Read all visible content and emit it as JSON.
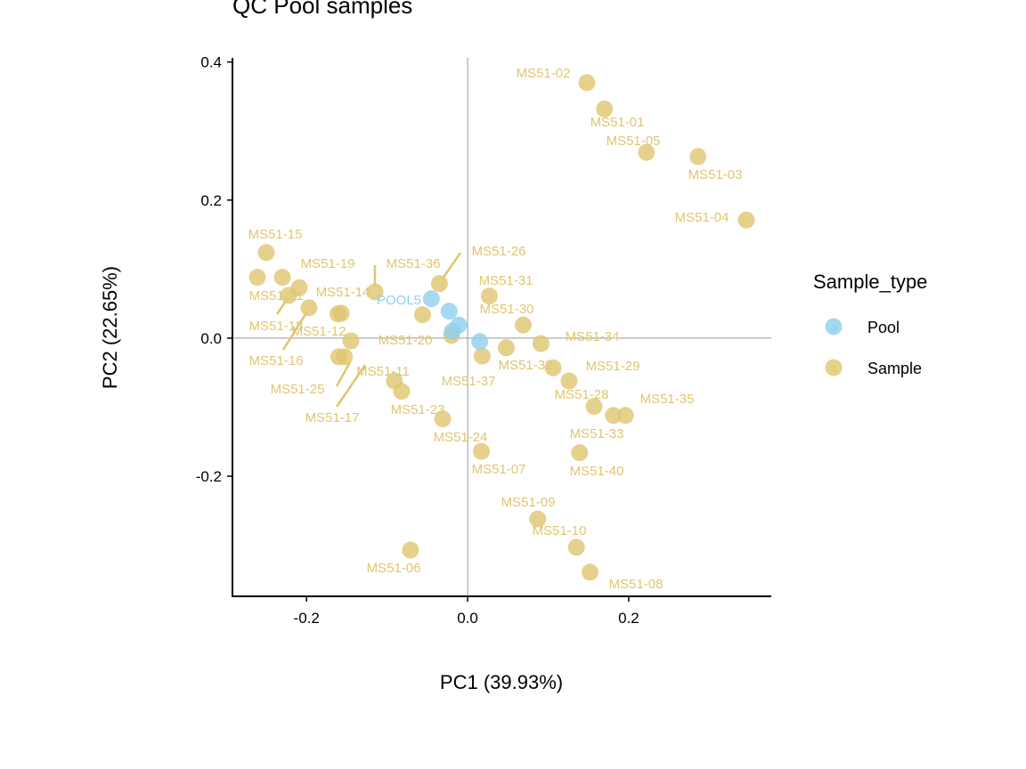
{
  "chart_data": {
    "type": "scatter",
    "title": "QC Pool samples",
    "xlabel": "PC1 (39.93%)",
    "ylabel": "PC2 (22.65%)",
    "xlim": [
      -0.292,
      0.377
    ],
    "ylim": [
      -0.374,
      0.406
    ],
    "xticks": [
      -0.2,
      0.0,
      0.2
    ],
    "xtick_labels": [
      "-0.2",
      "0.0",
      "0.2"
    ],
    "yticks": [
      -0.2,
      0.0,
      0.2,
      0.4
    ],
    "ytick_labels": [
      "-0.2",
      "0.0",
      "0.2",
      "0.4"
    ],
    "grid": false,
    "reference_lines": {
      "x": 0,
      "y": 0
    },
    "legend": {
      "title": "Sample_type",
      "position": "right",
      "entries": [
        "Pool",
        "Sample"
      ]
    },
    "colors": {
      "Pool": "#8ECFEE",
      "Sample": "#DFC66F"
    },
    "series": [
      {
        "name": "Pool",
        "points": [
          {
            "x": -0.045,
            "y": 0.057,
            "label": "POOL5"
          },
          {
            "x": -0.023,
            "y": 0.039,
            "label": ""
          },
          {
            "x": -0.011,
            "y": 0.019,
            "label": ""
          },
          {
            "x": -0.019,
            "y": 0.01,
            "label": ""
          },
          {
            "x": 0.015,
            "y": -0.005,
            "label": ""
          }
        ]
      },
      {
        "name": "Sample",
        "points": [
          {
            "x": 0.148,
            "y": 0.37,
            "label": "MS51-02"
          },
          {
            "x": 0.17,
            "y": 0.332,
            "label": "MS51-01"
          },
          {
            "x": 0.222,
            "y": 0.269,
            "label": "MS51-05"
          },
          {
            "x": 0.286,
            "y": 0.263,
            "label": "MS51-03"
          },
          {
            "x": 0.346,
            "y": 0.171,
            "label": "MS51-04"
          },
          {
            "x": -0.25,
            "y": 0.124,
            "label": "MS51-15"
          },
          {
            "x": -0.261,
            "y": 0.088,
            "label": ""
          },
          {
            "x": -0.23,
            "y": 0.088,
            "label": ""
          },
          {
            "x": -0.209,
            "y": 0.073,
            "label": "MS51-19"
          },
          {
            "x": -0.222,
            "y": 0.062,
            "label": "MS51-21"
          },
          {
            "x": -0.197,
            "y": 0.044,
            "label": "MS51-18"
          },
          {
            "x": -0.115,
            "y": 0.067,
            "label": "MS51-36"
          },
          {
            "x": -0.161,
            "y": 0.035,
            "label": "MS51-14"
          },
          {
            "x": -0.157,
            "y": 0.036,
            "label": "MS51-12"
          },
          {
            "x": -0.145,
            "y": -0.004,
            "label": "MS51-25"
          },
          {
            "x": -0.16,
            "y": -0.027,
            "label": "MS51-16"
          },
          {
            "x": -0.153,
            "y": -0.027,
            "label": "MS51-17"
          },
          {
            "x": -0.091,
            "y": -0.062,
            "label": "MS51-11"
          },
          {
            "x": -0.082,
            "y": -0.077,
            "label": "MS51-23"
          },
          {
            "x": -0.056,
            "y": 0.034,
            "label": "MS51-20"
          },
          {
            "x": -0.035,
            "y": 0.079,
            "label": "MS51-26"
          },
          {
            "x": -0.02,
            "y": 0.004,
            "label": ""
          },
          {
            "x": 0.027,
            "y": 0.061,
            "label": "MS51-31"
          },
          {
            "x": 0.069,
            "y": 0.019,
            "label": "MS51-30"
          },
          {
            "x": 0.018,
            "y": -0.026,
            "label": "MS51-37"
          },
          {
            "x": 0.048,
            "y": -0.014,
            "label": ""
          },
          {
            "x": 0.091,
            "y": -0.008,
            "label": "MS51-34"
          },
          {
            "x": 0.106,
            "y": -0.043,
            "label": "MS51-32"
          },
          {
            "x": 0.126,
            "y": -0.062,
            "label": "MS51-29"
          },
          {
            "x": 0.157,
            "y": -0.099,
            "label": "MS51-28"
          },
          {
            "x": 0.181,
            "y": -0.112,
            "label": "MS51-33"
          },
          {
            "x": 0.196,
            "y": -0.112,
            "label": "MS51-35"
          },
          {
            "x": 0.139,
            "y": -0.166,
            "label": "MS51-40"
          },
          {
            "x": -0.031,
            "y": -0.117,
            "label": "MS51-24"
          },
          {
            "x": 0.017,
            "y": -0.164,
            "label": "MS51-07"
          },
          {
            "x": 0.087,
            "y": -0.262,
            "label": "MS51-09"
          },
          {
            "x": 0.135,
            "y": -0.303,
            "label": "MS51-10"
          },
          {
            "x": 0.152,
            "y": -0.339,
            "label": "MS51-08"
          },
          {
            "x": -0.071,
            "y": -0.307,
            "label": "MS51-06"
          }
        ]
      }
    ]
  }
}
